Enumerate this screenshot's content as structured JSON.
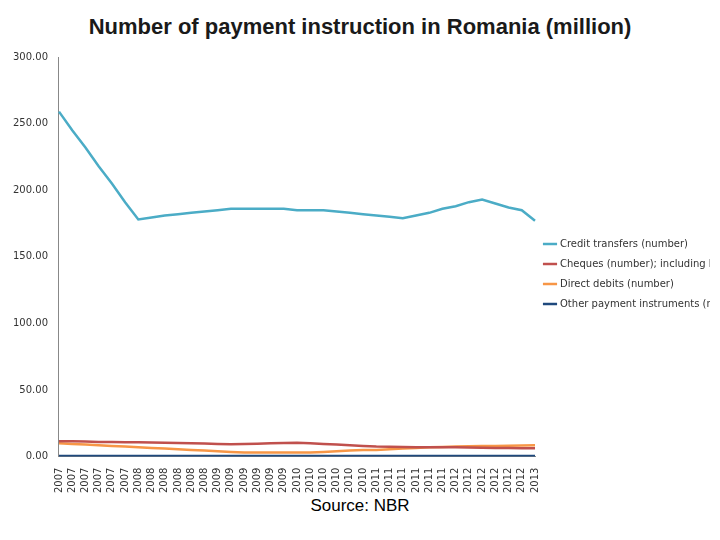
{
  "chart_data": {
    "type": "line",
    "title": "Number of payment instruction in Romania (million)",
    "annotation": "Source: NBR",
    "categories": [
      "2007",
      "2007",
      "2007",
      "2007",
      "2007",
      "2007",
      "2008",
      "2008",
      "2008",
      "2008",
      "2008",
      "2008",
      "2009",
      "2009",
      "2009",
      "2009",
      "2009",
      "2009",
      "2010",
      "2010",
      "2010",
      "2010",
      "2010",
      "2010",
      "2011",
      "2011",
      "2011",
      "2011",
      "2011",
      "2011",
      "2012",
      "2012",
      "2012",
      "2012",
      "2012",
      "2012",
      "2013"
    ],
    "series": [
      {
        "name": "Credit transfers (number)",
        "color": "#4bacc6",
        "values": [
          259,
          245,
          232,
          218,
          205,
          191,
          178,
          179.5,
          181,
          182,
          183,
          184,
          185,
          186,
          186,
          186,
          186,
          186,
          185,
          185,
          185,
          184,
          183,
          182,
          181,
          180,
          179,
          181,
          183,
          186,
          188,
          191,
          193,
          190,
          187,
          185,
          177
        ]
      },
      {
        "name": "Cheques (number); including bills of exchange",
        "color": "#c0504d",
        "values": [
          11.5,
          11.5,
          11.3,
          11,
          11,
          10.8,
          10.8,
          10.6,
          10.4,
          10.2,
          10,
          9.8,
          9.5,
          9.3,
          9.5,
          9.7,
          10,
          10.2,
          10.3,
          10,
          9.5,
          9,
          8.5,
          8,
          7.5,
          7.3,
          7.2,
          7,
          7,
          7,
          7,
          6.8,
          6.7,
          6.5,
          6.5,
          6.3,
          6.2
        ]
      },
      {
        "name": "Direct debits (number)",
        "color": "#f79646",
        "values": [
          10,
          9.5,
          9,
          8.5,
          8,
          7.5,
          7,
          6.5,
          6,
          5.5,
          5,
          4.5,
          4,
          3.5,
          3,
          3,
          3,
          3,
          3,
          3,
          3.5,
          4,
          4.5,
          5,
          5,
          5.5,
          6,
          6.5,
          7,
          7.2,
          7.5,
          7.7,
          8,
          8,
          8.2,
          8.3,
          8.5
        ]
      },
      {
        "name": "Other payment instruments (number)",
        "color": "#1f497d",
        "values": [
          0.5,
          0.5,
          0.5,
          0.5,
          0.5,
          0.5,
          0.5,
          0.5,
          0.5,
          0.5,
          0.5,
          0.5,
          0.5,
          0.5,
          0.5,
          0.5,
          0.5,
          0.5,
          0.5,
          0.5,
          0.5,
          0.5,
          0.5,
          0.5,
          0.5,
          0.5,
          0.5,
          0.5,
          0.5,
          0.5,
          0.5,
          0.5,
          0.5,
          0.5,
          0.5,
          0.5,
          0.5
        ]
      }
    ],
    "ylim": [
      0,
      300
    ],
    "yticks": [
      {
        "value": 0,
        "label": "0.00"
      },
      {
        "value": 50,
        "label": "50.00"
      },
      {
        "value": 100,
        "label": "100.00"
      },
      {
        "value": 150,
        "label": "150.00"
      },
      {
        "value": 200,
        "label": "200.00"
      },
      {
        "value": 250,
        "label": "250.00"
      },
      {
        "value": 300,
        "label": "300.00"
      }
    ],
    "grid": false,
    "legend": "right"
  }
}
